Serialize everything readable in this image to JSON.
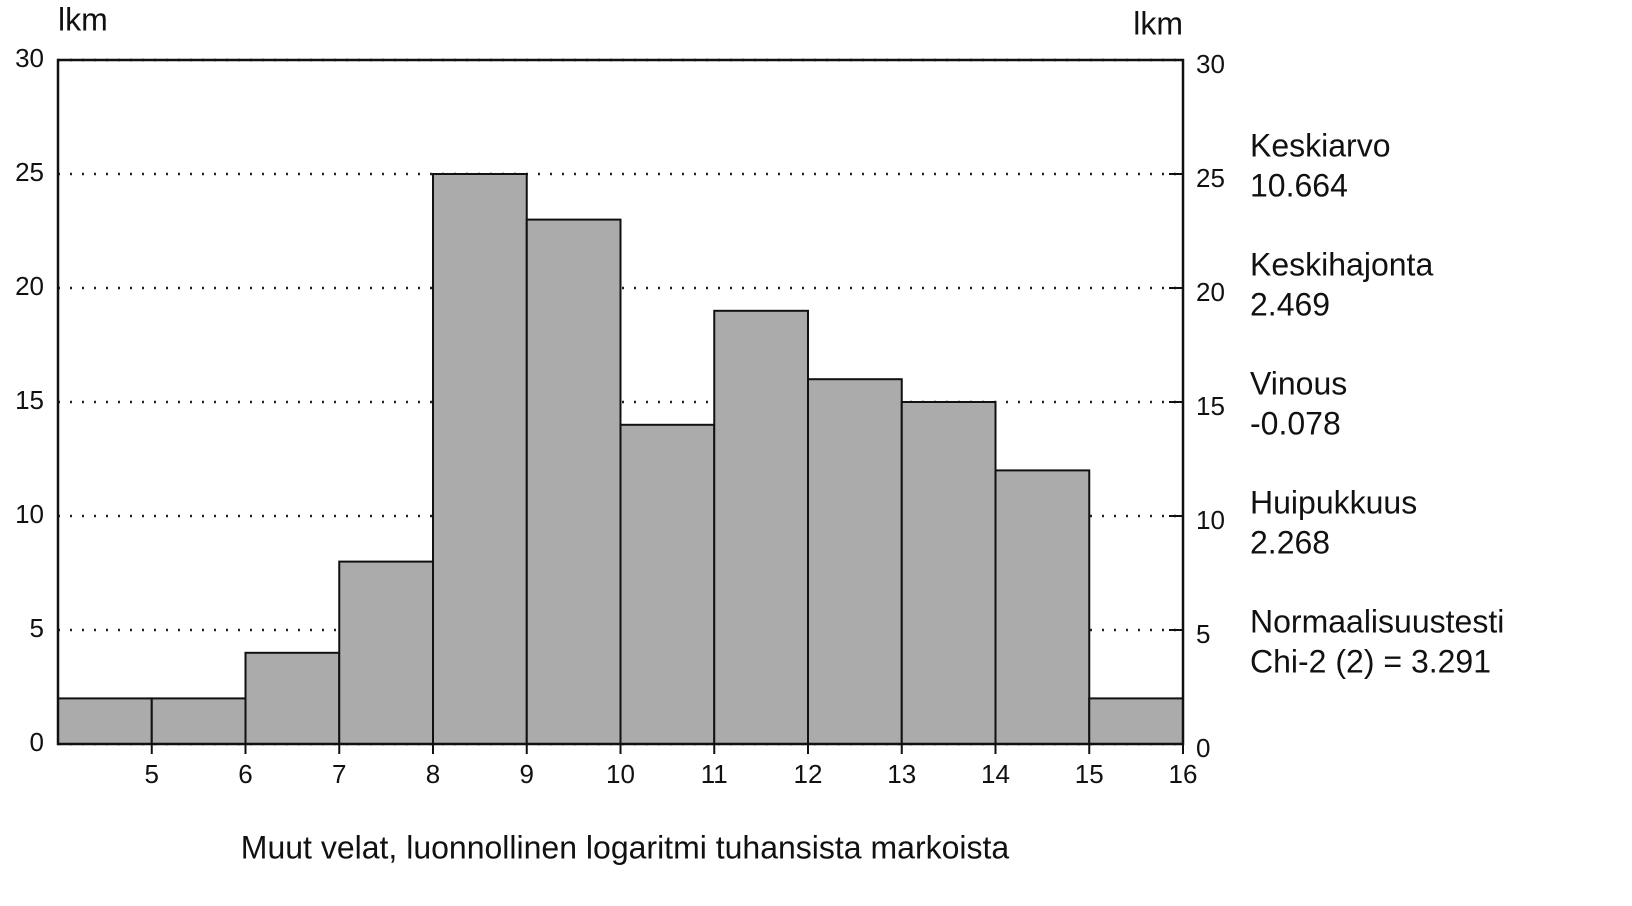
{
  "chart_data": {
    "type": "histogram",
    "xlabel": "Muut velat, luonnollinen logaritmi tuhansista markoista",
    "ylabel": "lkm",
    "y2label": "lkm",
    "bins": [
      4,
      5,
      6,
      7,
      8,
      9,
      10,
      11,
      12,
      13,
      14,
      15,
      16
    ],
    "counts": [
      2,
      2,
      4,
      8,
      25,
      23,
      14,
      19,
      16,
      15,
      12,
      2
    ],
    "color": "#ababab",
    "xlim": [
      4,
      16
    ],
    "xticks": [
      5,
      6,
      7,
      8,
      9,
      10,
      11,
      12,
      13,
      14,
      15,
      16
    ],
    "ylim": [
      0,
      30
    ],
    "yticks": [
      0,
      5,
      10,
      15,
      20,
      25,
      30
    ],
    "y2lim": [
      0,
      30
    ],
    "y2ticks": [
      0,
      5,
      10,
      15,
      20,
      25,
      30
    ],
    "grid": true,
    "annotations": [
      "Keskiarvo",
      "10.664",
      "Keskihajonta",
      "2.469",
      "Vinous",
      "-0.078",
      "Huipukkuus",
      "2.268",
      "Normaalisuustesti",
      "Chi-2 (2) = 3.291"
    ]
  }
}
